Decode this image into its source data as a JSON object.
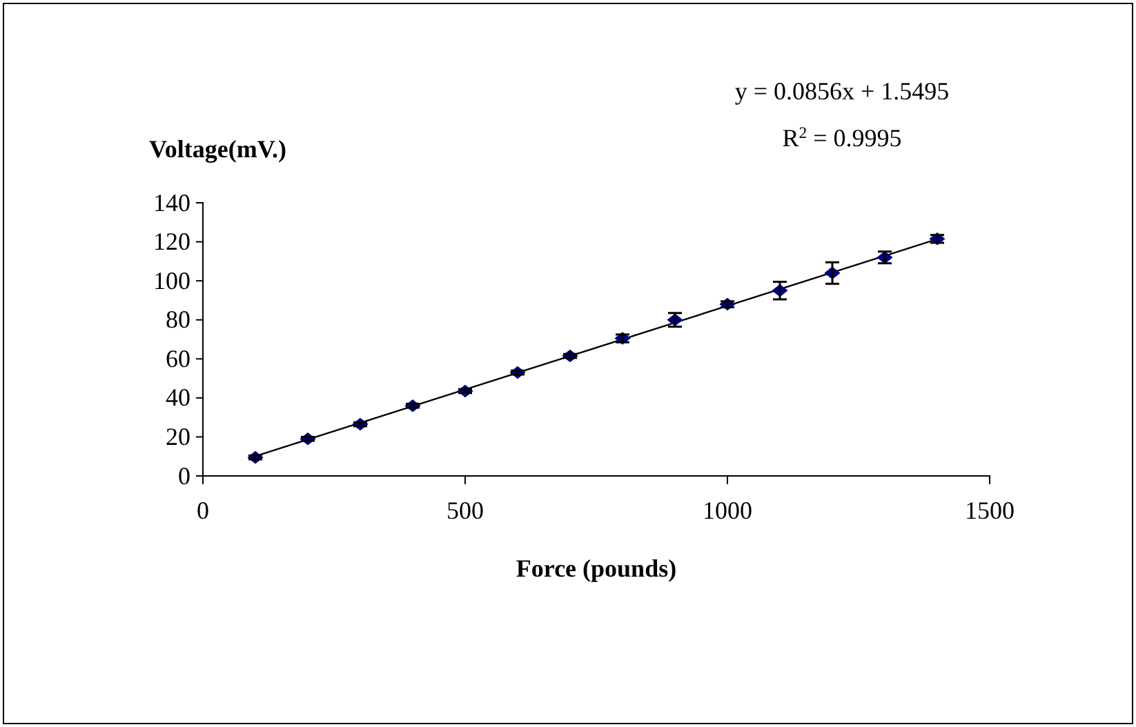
{
  "chart_data": {
    "type": "scatter",
    "xlabel": "Force (pounds)",
    "ylabel": "Voltage(mV.)",
    "annotations": [
      "y = 0.0856x + 1.5495",
      "R$^{2}$ = 0.9995"
    ],
    "xlim": [
      0,
      1500
    ],
    "xticks": [
      0,
      500,
      1000,
      1500
    ],
    "ylim": [
      0,
      140
    ],
    "yticks": [
      0,
      20,
      40,
      60,
      80,
      100,
      120,
      140
    ],
    "grid": false,
    "series": [
      {
        "marker": "diamond",
        "color": "#000080",
        "x": [
          100,
          200,
          300,
          400,
          500,
          600,
          700,
          800,
          900,
          1000,
          1100,
          1200,
          1300,
          1400
        ],
        "values": [
          9.5,
          19,
          26.5,
          36,
          43.5,
          53,
          61.5,
          70.5,
          80,
          88,
          95,
          104,
          112,
          121.5
        ],
        "errors": [
          1,
          1,
          1,
          1,
          1,
          1,
          1,
          2,
          3.5,
          1.5,
          4.5,
          5.5,
          3,
          2
        ]
      },
      {
        "type": "line",
        "color": "#000000",
        "x": [
          100,
          1400
        ],
        "values": [
          10.1,
          121.4
        ],
        "line_style": "solid"
      }
    ]
  }
}
